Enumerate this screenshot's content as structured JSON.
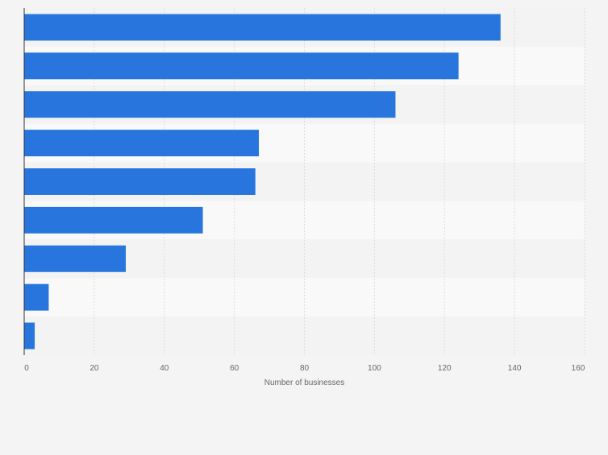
{
  "chart_data": {
    "type": "bar",
    "orientation": "horizontal",
    "categories": [
      "",
      "",
      "",
      "",
      "",
      "",
      "",
      "",
      ""
    ],
    "values": [
      136,
      124,
      106,
      67,
      66,
      51,
      29,
      7,
      3
    ],
    "xlabel": "Number of businesses",
    "ylabel": "",
    "xlim": [
      0,
      160
    ],
    "x_ticks": [
      "0",
      "20",
      "40",
      "60",
      "80",
      "100",
      "120",
      "140",
      "160"
    ],
    "grid": "vertical",
    "legend": "none",
    "colors": {
      "bar": "#2876dd",
      "band_light": "#f9f9f9",
      "band_dark": "#f3f3f3",
      "background": "#f4f4f4",
      "gridline": "#dcdcdc",
      "axis": "#333333",
      "tick_text": "#666666"
    }
  }
}
